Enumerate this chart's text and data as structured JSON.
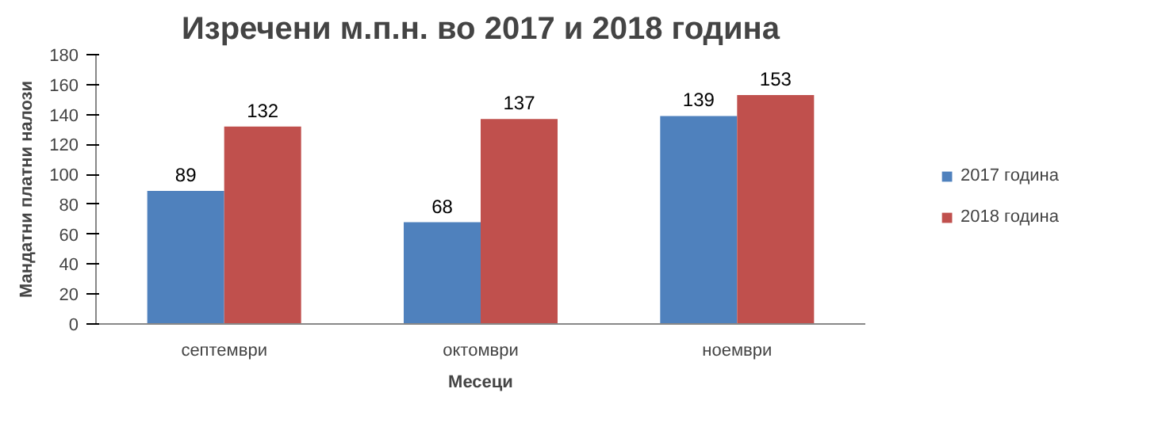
{
  "chart_data": {
    "type": "bar",
    "title": "Изречени м.п.н. во 2017 и 2018 година",
    "xlabel": "Месеци",
    "ylabel": "Мандатни платни налози",
    "categories": [
      "септември",
      "октомври",
      "ноември"
    ],
    "series": [
      {
        "name": "2017 година",
        "color": "#4f81bd",
        "values": [
          89,
          68,
          139
        ]
      },
      {
        "name": "2018 година",
        "color": "#c0504d",
        "values": [
          132,
          137,
          153
        ]
      }
    ],
    "ylim": [
      0,
      180
    ],
    "yticks": [
      0,
      20,
      40,
      60,
      80,
      100,
      120,
      140,
      160,
      180
    ],
    "grid": false,
    "legend": "right",
    "data_labels": true
  }
}
